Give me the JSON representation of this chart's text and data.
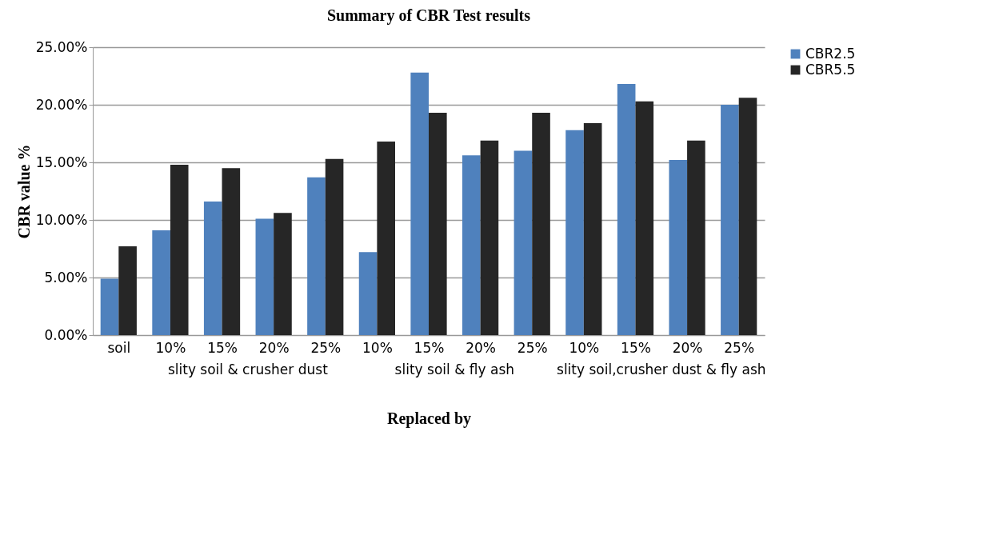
{
  "chart_data": {
    "type": "bar",
    "title": "Summary of CBR Test results",
    "xlabel": "Replaced by",
    "ylabel": "CBR value %",
    "categories": [
      "soil",
      "10%",
      "15%",
      "20%",
      "25%",
      "10%",
      "15%",
      "20%",
      "25%",
      "10%",
      "15%",
      "20%",
      "25%"
    ],
    "annotations": [
      "slity soil & crusher dust",
      "slity soil & fly ash",
      "slity soil,crusher dust & fly ash"
    ],
    "series": [
      {
        "name": "CBR2.5",
        "color": "#4f81bd",
        "values": [
          4.9,
          9.1,
          11.6,
          10.1,
          13.7,
          7.2,
          22.8,
          15.6,
          16.0,
          17.8,
          21.8,
          15.2,
          20.0
        ]
      },
      {
        "name": "CBR5.5",
        "color": "#262626",
        "values": [
          7.7,
          14.8,
          14.5,
          10.6,
          15.3,
          16.8,
          19.3,
          16.9,
          19.3,
          18.4,
          20.3,
          16.9,
          20.6
        ]
      }
    ],
    "ylim": [
      0,
      25
    ],
    "yticks": [
      {
        "value": 0,
        "label": "0.00%"
      },
      {
        "value": 5,
        "label": "5.00%"
      },
      {
        "value": 10,
        "label": "10.00%"
      },
      {
        "value": 15,
        "label": "15.00%"
      },
      {
        "value": 20,
        "label": "20.00%"
      },
      {
        "value": 25,
        "label": "25.00%"
      }
    ],
    "grid": "y",
    "legend": "right"
  }
}
